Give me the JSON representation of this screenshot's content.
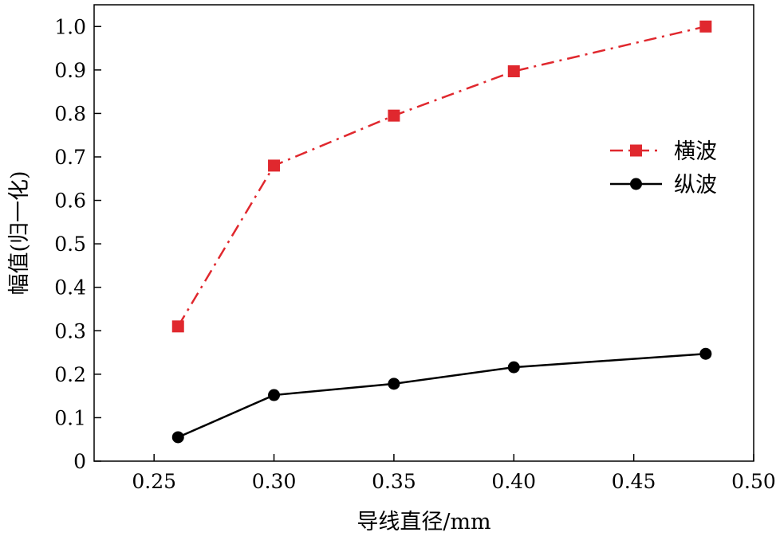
{
  "chart_data": {
    "type": "line",
    "title": "",
    "xlabel": "导线直径/mm",
    "ylabel": "幅值(归一化)",
    "xlim": [
      0.225,
      0.5
    ],
    "ylim": [
      0,
      1.05
    ],
    "xticks": [
      0.25,
      0.3,
      0.35,
      0.4,
      0.45,
      0.5
    ],
    "xtick_labels": [
      "0.25",
      "0.30",
      "0.35",
      "0.40",
      "0.45",
      "0.50"
    ],
    "yticks": [
      0,
      0.1,
      0.2,
      0.3,
      0.4,
      0.5,
      0.6,
      0.7,
      0.8,
      0.9,
      1.0
    ],
    "ytick_labels": [
      "0",
      "0.1",
      "0.2",
      "0.3",
      "0.4",
      "0.5",
      "0.6",
      "0.7",
      "0.8",
      "0.9",
      "1.0"
    ],
    "grid": false,
    "legend_position": "right",
    "x": [
      0.26,
      0.3,
      0.35,
      0.4,
      0.48
    ],
    "series": [
      {
        "name": "横波",
        "values": [
          0.31,
          0.68,
          0.795,
          0.897,
          1.0
        ],
        "color": "#e0282e",
        "line_style": "dash-dot",
        "marker": "square"
      },
      {
        "name": "纵波",
        "values": [
          0.055,
          0.152,
          0.178,
          0.216,
          0.247
        ],
        "color": "#000000",
        "line_style": "solid",
        "marker": "circle"
      }
    ]
  }
}
